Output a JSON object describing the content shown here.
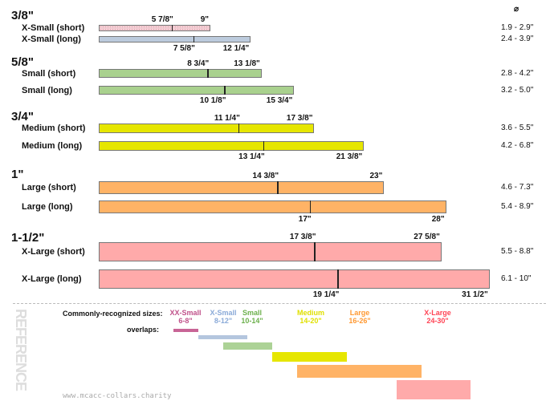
{
  "diameter_header": "⌀",
  "groups": [
    {
      "label": "3/8\"",
      "rows": [
        {
          "label": "X-Small (short)",
          "mark": 5.875,
          "mark_label": "5 7/8\"",
          "end": 9,
          "end_label": "9\"",
          "diameter": "1.9 - 2.9\"",
          "color": "#f2cdd3",
          "pattern": "dotted"
        },
        {
          "label": "X-Small (long)",
          "mark": 7.625,
          "mark_label": "7 5/8\"",
          "end": 12.25,
          "end_label": "12 1/4\"",
          "diameter": "2.4 - 3.9\"",
          "color": "#bccbdd"
        }
      ]
    },
    {
      "label": "5/8\"",
      "rows": [
        {
          "label": "Small (short)",
          "mark": 8.75,
          "mark_label": "8 3/4\"",
          "end": 13.125,
          "end_label": "13 1/8\"",
          "diameter": "2.8 - 4.2\"",
          "color": "#a9d18e"
        },
        {
          "label": "Small (long)",
          "mark": 10.125,
          "mark_label": "10 1/8\"",
          "end": 15.75,
          "end_label": "15 3/4\"",
          "diameter": "3.2 - 5.0\"",
          "color": "#a9d18e"
        }
      ]
    },
    {
      "label": "3/4\"",
      "rows": [
        {
          "label": "Medium (short)",
          "mark": 11.25,
          "mark_label": "11 1/4\"",
          "end": 17.375,
          "end_label": "17 3/8\"",
          "diameter": "3.6 - 5.5\"",
          "color": "#e6e600"
        },
        {
          "label": "Medium (long)",
          "mark": 13.25,
          "mark_label": "13 1/4\"",
          "end": 21.375,
          "end_label": "21 3/8\"",
          "diameter": "4.2 - 6.8\"",
          "color": "#e6e600"
        }
      ]
    },
    {
      "label": "1\"",
      "rows": [
        {
          "label": "Large (short)",
          "mark": 14.375,
          "mark_label": "14 3/8\"",
          "end": 23,
          "end_label": "23\"",
          "diameter": "4.6 - 7.3\"",
          "color": "#ffb366"
        },
        {
          "label": "Large (long)",
          "mark": 17,
          "mark_label": "17\"",
          "end": 28,
          "end_label": "28\"",
          "diameter": "5.4 - 8.9\"",
          "color": "#ffb366"
        }
      ]
    },
    {
      "label": "1-1/2\"",
      "rows": [
        {
          "label": "X-Large (short)",
          "mark": 17.375,
          "mark_label": "17 3/8\"",
          "end": 27.625,
          "end_label": "27 5/8\"",
          "diameter": "5.5 - 8.8\"",
          "color": "#ffaaaa"
        },
        {
          "label": "X-Large (long)",
          "mark": 19.25,
          "mark_label": "19 1/4\"",
          "end": 31.5,
          "end_label": "31 1/2\"",
          "diameter": "6.1 - 10\"",
          "color": "#ffaaaa"
        }
      ]
    }
  ],
  "reference": {
    "watermark": "REFERENCE",
    "sizes_label": "Commonly-recognized sizes:",
    "overlaps_label": "overlaps:",
    "sizes": [
      {
        "name": "XX-Small",
        "range": "6-8\"",
        "min": 6,
        "max": 8,
        "text_color": "#c0508a",
        "bar_color": "#c86496"
      },
      {
        "name": "X-Small",
        "range": "8-12\"",
        "min": 8,
        "max": 12,
        "text_color": "#8aaad8",
        "bar_color": "#b4c6de"
      },
      {
        "name": "Small",
        "range": "10-14\"",
        "min": 10,
        "max": 14,
        "text_color": "#6cb04c",
        "bar_color": "#acd296"
      },
      {
        "name": "Medium",
        "range": "14-20\"",
        "min": 14,
        "max": 20,
        "text_color": "#e0e000",
        "bar_color": "#e6e600"
      },
      {
        "name": "Large",
        "range": "16-26\"",
        "min": 16,
        "max": 26,
        "text_color": "#ff9933",
        "bar_color": "#ffb366"
      },
      {
        "name": "X-Large",
        "range": "24-30\"",
        "min": 24,
        "max": 30,
        "text_color": "#ff4455",
        "bar_color": "#ffaaaa"
      }
    ],
    "footer": "www.mcacc-collars.charity"
  }
}
